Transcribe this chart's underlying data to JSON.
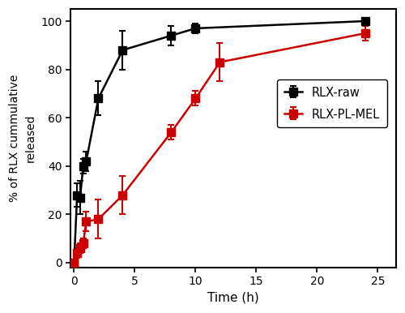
{
  "rlx_raw_x": [
    0,
    0.25,
    0.5,
    0.75,
    1,
    2,
    4,
    8,
    10,
    24
  ],
  "rlx_raw_y": [
    0,
    28,
    27,
    40,
    42,
    68,
    88,
    94,
    97,
    100
  ],
  "rlx_raw_yerr": [
    0,
    5,
    7,
    3,
    4,
    7,
    8,
    4,
    2,
    1
  ],
  "rlx_pl_mel_x": [
    0,
    0.25,
    0.5,
    0.75,
    1,
    2,
    4,
    8,
    10,
    12,
    24
  ],
  "rlx_pl_mel_y": [
    0,
    4,
    6,
    8,
    17,
    18,
    28,
    54,
    68,
    83,
    95
  ],
  "rlx_pl_mel_yerr": [
    0,
    2,
    2,
    2,
    4,
    8,
    8,
    3,
    3,
    8,
    3
  ],
  "raw_color": "#000000",
  "mel_color": "#cc0000",
  "xlabel": "Time (h)",
  "ylabel": "% of RLX cummulative\nreleased",
  "xlim": [
    -0.3,
    26.5
  ],
  "ylim": [
    -2,
    105
  ],
  "xticks": [
    0,
    5,
    10,
    15,
    20,
    25
  ],
  "yticks": [
    0,
    20,
    40,
    60,
    80,
    100
  ],
  "legend_labels": [
    "RLX-raw",
    "RLX-PL-MEL"
  ],
  "marker_size": 7,
  "linewidth": 1.8,
  "capsize": 3,
  "elinewidth": 1.5,
  "capthick": 1.5
}
